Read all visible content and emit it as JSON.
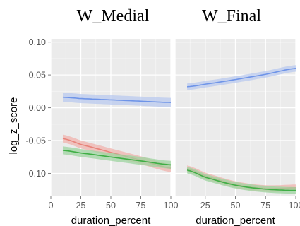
{
  "chart_data": {
    "type": "line",
    "ylabel": "log_z_score",
    "ylim": [
      -0.135,
      0.105
    ],
    "yticks": [
      0.1,
      0.05,
      0.0,
      -0.05,
      -0.1
    ],
    "ytick_labels": [
      "0.10",
      "0.05",
      "0.00",
      "-0.05",
      "-0.10"
    ],
    "grid": true,
    "legend": "none",
    "facets": [
      {
        "title": "W_Medial",
        "xlabel": "duration_percent",
        "xlim": [
          0,
          100
        ],
        "xticks": [
          0,
          25,
          50,
          75,
          100
        ],
        "xtick_labels": [
          "0",
          "25",
          "50",
          "75",
          "100"
        ],
        "series": [
          {
            "color": "#6e94e8",
            "band_color": "#b9c9ef",
            "x": [
              10,
              25,
              50,
              75,
              100
            ],
            "y": [
              0.016,
              0.014,
              0.012,
              0.01,
              0.008
            ],
            "ci": 0.007
          },
          {
            "color": "#e8837a",
            "band_color": "#f0b3ad",
            "x": [
              10,
              25,
              50,
              75,
              100
            ],
            "y": [
              -0.047,
              -0.056,
              -0.068,
              -0.08,
              -0.092
            ],
            "ci": 0.006
          },
          {
            "color": "#3fae45",
            "band_color": "#9ed4a0",
            "x": [
              10,
              25,
              50,
              75,
              100
            ],
            "y": [
              -0.065,
              -0.069,
              -0.075,
              -0.081,
              -0.087
            ],
            "ci": 0.006
          }
        ]
      },
      {
        "title": "W_Final",
        "xlabel": "duration_percent",
        "xlim": [
          0,
          100
        ],
        "xticks": [
          25,
          50,
          75,
          100
        ],
        "xtick_labels": [
          "25",
          "50",
          "75",
          "100"
        ],
        "series": [
          {
            "color": "#6e94e8",
            "band_color": "#b9c9ef",
            "x": [
              10,
              25,
              50,
              75,
              100
            ],
            "y": [
              0.032,
              0.036,
              0.043,
              0.051,
              0.06
            ],
            "ci": 0.005
          },
          {
            "color": "#e8837a",
            "band_color": "#f0b3ad",
            "x": [
              10,
              25,
              50,
              75,
              100
            ],
            "y": [
              -0.093,
              -0.104,
              -0.117,
              -0.123,
              -0.122
            ],
            "ci": 0.005
          },
          {
            "color": "#3fae45",
            "band_color": "#9ed4a0",
            "x": [
              10,
              25,
              50,
              75,
              100
            ],
            "y": [
              -0.095,
              -0.106,
              -0.118,
              -0.124,
              -0.126
            ],
            "ci": 0.005
          }
        ]
      }
    ]
  }
}
